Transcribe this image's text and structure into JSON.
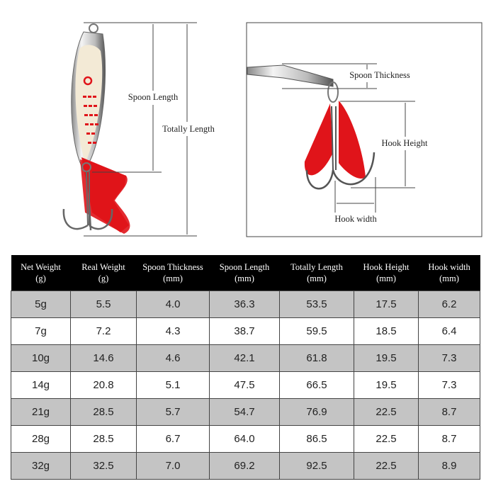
{
  "diagram": {
    "labels": {
      "spoon_length": "Spoon Length",
      "totally_length": "Totally Length",
      "spoon_thickness": "Spoon Thickness",
      "hook_height": "Hook Height",
      "hook_width": "Hook width"
    },
    "colors": {
      "blade_red": "#e0141a",
      "silver": "#c8c8c8"
    }
  },
  "table": {
    "headers": [
      [
        "Net Weight",
        "(g)"
      ],
      [
        "Real Weight",
        "(g)"
      ],
      [
        "Spoon Thickness",
        "(mm)"
      ],
      [
        "Spoon Length",
        "(mm)"
      ],
      [
        "Totally Length",
        "(mm)"
      ],
      [
        "Hook Height",
        "(mm)"
      ],
      [
        "Hook width",
        "(mm)"
      ]
    ],
    "rows": [
      [
        "5g",
        "5.5",
        "4.0",
        "36.3",
        "53.5",
        "17.5",
        "6.2"
      ],
      [
        "7g",
        "7.2",
        "4.3",
        "38.7",
        "59.5",
        "18.5",
        "6.4"
      ],
      [
        "10g",
        "14.6",
        "4.6",
        "42.1",
        "61.8",
        "19.5",
        "7.3"
      ],
      [
        "14g",
        "20.8",
        "5.1",
        "47.5",
        "66.5",
        "19.5",
        "7.3"
      ],
      [
        "21g",
        "28.5",
        "5.7",
        "54.7",
        "76.9",
        "22.5",
        "8.7"
      ],
      [
        "28g",
        "28.5",
        "6.7",
        "64.0",
        "86.5",
        "22.5",
        "8.7"
      ],
      [
        "32g",
        "32.5",
        "7.0",
        "69.2",
        "92.5",
        "22.5",
        "8.9"
      ]
    ]
  }
}
